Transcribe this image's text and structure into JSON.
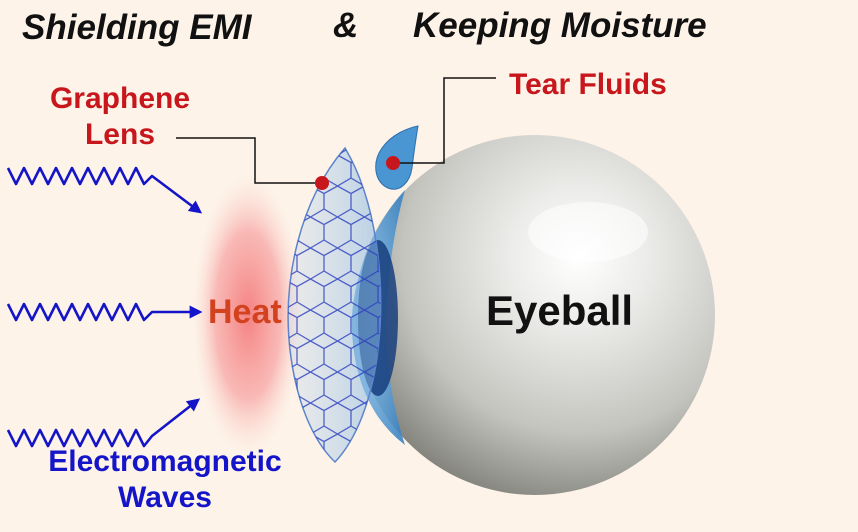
{
  "title": {
    "left": "Shielding EMI",
    "amp": "&",
    "right": "Keeping Moisture"
  },
  "labels": {
    "graphene_lens_line1": "Graphene",
    "graphene_lens_line2": "Lens",
    "tear_fluids": "Tear Fluids",
    "heat": "Heat",
    "eyeball": "Eyeball",
    "em_waves_line1": "Electromagnetic",
    "em_waves_line2": "Waves"
  },
  "colors": {
    "background": "#fdf3e8",
    "title_text": "#111111",
    "callout_red": "#c8161d",
    "wave_blue": "#1414c8",
    "heat_red": "#d3421f",
    "lens_blue": "#5aa6de",
    "eyeball_gray": "#c9c9c3"
  }
}
